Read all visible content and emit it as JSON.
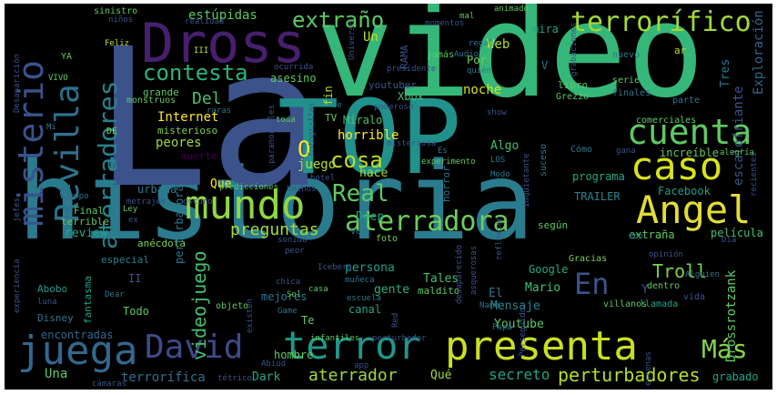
{
  "title": "Word cloud",
  "colors": {
    "background": "#000000",
    "frame": "#ffffff"
  },
  "words": [
    {
      "text": "historia",
      "color": "#2a7b8e"
    },
    {
      "text": "La",
      "color": "#3b528b"
    },
    {
      "text": "video",
      "color": "#35b779"
    },
    {
      "text": "TOP",
      "color": "#21918c"
    },
    {
      "text": "Dross",
      "color": "#481f70"
    },
    {
      "text": "caso",
      "color": "#d8e219"
    },
    {
      "text": "cuenta",
      "color": "#5ec962"
    },
    {
      "text": "mundo",
      "color": "#90d743"
    },
    {
      "text": "Angel",
      "color": "#e1dd37"
    },
    {
      "text": "presenta",
      "color": "#c8e020"
    },
    {
      "text": "juega",
      "color": "#31688e"
    },
    {
      "text": "David",
      "color": "#3e4a89"
    },
    {
      "text": "terror",
      "color": "#1f988b"
    },
    {
      "text": "Revilla",
      "color": "#2c728e"
    },
    {
      "text": "misterio",
      "color": "#3b528b"
    },
    {
      "text": "aterradores",
      "color": "#26828e"
    },
    {
      "text": "terrorífico",
      "color": "#a2da37"
    },
    {
      "text": "extraño",
      "color": "#5ec962"
    },
    {
      "text": "contesta",
      "color": "#2db27d"
    },
    {
      "text": "aterradora",
      "color": "#6ccd5a"
    },
    {
      "text": "Real",
      "color": "#5ec962"
    },
    {
      "text": "En",
      "color": "#3b528b"
    },
    {
      "text": "Más",
      "color": "#86d549"
    },
    {
      "text": "cosa",
      "color": "#bddf26"
    },
    {
      "text": "O",
      "color": "#fde725"
    },
    {
      "text": "preguntas",
      "color": "#a8db34"
    },
    {
      "text": "perturbadores",
      "color": "#b5de2b"
    },
    {
      "text": "aterrador",
      "color": "#9fda3a"
    },
    {
      "text": "secreto",
      "color": "#20a486"
    },
    {
      "text": "Troll",
      "color": "#7ad151"
    },
    {
      "text": "videojuego",
      "color": "#46c06f"
    },
    {
      "text": "estúpidas",
      "color": "#5ec962"
    },
    {
      "text": "Del",
      "color": "#4ac16d"
    },
    {
      "text": "Internet",
      "color": "#fde725"
    },
    {
      "text": "peores",
      "color": "#9fda3a"
    },
    {
      "text": "juego",
      "color": "#b5de2b"
    },
    {
      "text": "grande",
      "color": "#5ec962"
    },
    {
      "text": "misterioso",
      "color": "#7ad151"
    },
    {
      "text": "Web",
      "color": "#b5de2b"
    },
    {
      "text": "mira",
      "color": "#20a486"
    },
    {
      "text": "Un",
      "color": "#bddf26"
    },
    {
      "text": "Por",
      "color": "#75d054"
    },
    {
      "text": "noche",
      "color": "#d8e219"
    },
    {
      "text": "Xbox",
      "color": "#44bf70"
    },
    {
      "text": "horrible",
      "color": "#fde725"
    },
    {
      "text": "Míralo",
      "color": "#4ac16d"
    },
    {
      "text": "hace",
      "color": "#a2da37"
    },
    {
      "text": "Algo",
      "color": "#44bf70"
    },
    {
      "text": "Deep",
      "color": "#1fa188"
    },
    {
      "text": "persona",
      "color": "#1fa188"
    },
    {
      "text": "gente",
      "color": "#29af7f"
    },
    {
      "text": "Mensaje",
      "color": "#25848e"
    },
    {
      "text": "Youtube",
      "color": "#5ec962"
    },
    {
      "text": "Mario",
      "color": "#44bf70"
    },
    {
      "text": "Tales",
      "color": "#44bf70"
    },
    {
      "text": "Google",
      "color": "#22a884"
    },
    {
      "text": "Facebook",
      "color": "#1f9e89"
    },
    {
      "text": "Tres",
      "color": "#2a788e"
    },
    {
      "text": "escalofriante",
      "color": "#3b528b"
    },
    {
      "text": "Exploración",
      "color": "#31688e"
    },
    {
      "text": "review",
      "color": "#22a884"
    },
    {
      "text": "mejores",
      "color": "#2a788e"
    },
    {
      "text": "Todo",
      "color": "#5ec962"
    },
    {
      "text": "Una",
      "color": "#5ec962"
    },
    {
      "text": "terrorífica",
      "color": "#2c728e"
    },
    {
      "text": "encontradas",
      "color": "#31688e"
    },
    {
      "text": "Dark",
      "color": "#22a884"
    },
    {
      "text": "Qué",
      "color": "#a0da39"
    },
    {
      "text": "grabado",
      "color": "#20a486"
    },
    {
      "text": "Drossrotzank",
      "color": "#5ec962"
    },
    {
      "text": "TRAILER",
      "color": "#25848e"
    },
    {
      "text": "programa",
      "color": "#22a884"
    },
    {
      "text": "película",
      "color": "#44bf70"
    },
    {
      "text": "extraña",
      "color": "#5ec962"
    },
    {
      "text": "increíble",
      "color": "#5ec962"
    },
    {
      "text": "fin",
      "color": "#bddf26"
    },
    {
      "text": "asesino",
      "color": "#5ec962"
    },
    {
      "text": "youtuber",
      "color": "#3b528b"
    },
    {
      "text": "libro",
      "color": "#5ec962"
    },
    {
      "text": "canal",
      "color": "#22a884"
    },
    {
      "text": "hombre",
      "color": "#5ec962"
    },
    {
      "text": "especial",
      "color": "#26828e"
    },
    {
      "text": "anécdota",
      "color": "#7ad151"
    },
    {
      "text": "fantasma",
      "color": "#20a486"
    },
    {
      "text": "urbana",
      "color": "#2a788e"
    },
    {
      "text": "perturbadora",
      "color": "#2a788e"
    },
    {
      "text": "Que",
      "color": "#fde725"
    },
    {
      "text": "Final",
      "color": "#5ec962"
    },
    {
      "text": "terrible",
      "color": "#5ec962"
    },
    {
      "text": "II",
      "color": "#3b528b"
    },
    {
      "text": "Abobo",
      "color": "#1f988b"
    },
    {
      "text": "Disney",
      "color": "#2a788e"
    },
    {
      "text": "Te",
      "color": "#5ec962"
    },
    {
      "text": "El",
      "color": "#2a788e"
    },
    {
      "text": "Y",
      "color": "#3b528b"
    },
    {
      "text": "V",
      "color": "#2a788e"
    },
    {
      "text": "ar",
      "color": "#bddf26"
    },
    {
      "text": "TV",
      "color": "#5ec962"
    },
    {
      "text": "Cómo",
      "color": "#2a788e"
    },
    {
      "text": "según",
      "color": "#5ec962"
    },
    {
      "text": "horror",
      "color": "#2a788e"
    },
    {
      "text": "ver",
      "color": "#2a788e"
    },
    {
      "text": "foto",
      "color": "#7ad151"
    },
    {
      "text": "maldito",
      "color": "#5ec962"
    },
    {
      "text": "Gracias",
      "color": "#7ad151"
    },
    {
      "text": "dentro",
      "color": "#5ec962"
    },
    {
      "text": "llamada",
      "color": "#20a486"
    },
    {
      "text": "vida",
      "color": "#3b528b"
    },
    {
      "text": "muerte",
      "color": "#440154"
    },
    {
      "text": "Dreams",
      "color": "#2a788e"
    },
    {
      "text": "sinistro",
      "color": "#5ec962"
    },
    {
      "text": "Feliz",
      "color": "#bddf26"
    },
    {
      "text": "YA",
      "color": "#5ec962"
    },
    {
      "text": "VIVO",
      "color": "#5ec962"
    },
    {
      "text": "Mi",
      "color": "#2a788e"
    },
    {
      "text": "DE",
      "color": "#7ad151"
    },
    {
      "text": "monstruos",
      "color": "#5ec962"
    },
    {
      "text": "raras",
      "color": "#2a788e"
    },
    {
      "text": "ocurrida",
      "color": "#3b528b"
    },
    {
      "text": "presidente",
      "color": "#3b528b"
    },
    {
      "text": "jamás",
      "color": "#5ec962"
    },
    {
      "text": "Audio",
      "color": "#2a788e"
    },
    {
      "text": "quién",
      "color": "#2a788e"
    },
    {
      "text": "regalo",
      "color": "#2a788e"
    },
    {
      "text": "momentos",
      "color": "#3b528b"
    },
    {
      "text": "animado",
      "color": "#5ec962"
    },
    {
      "text": "nuevo",
      "color": "#2a788e"
    },
    {
      "text": "serie",
      "color": "#5ec962"
    },
    {
      "text": "grabaciones",
      "color": "#3b528b"
    },
    {
      "text": "finales",
      "color": "#2a788e"
    },
    {
      "text": "parte",
      "color": "#2a788e"
    },
    {
      "text": "comerciales",
      "color": "#5ec962"
    },
    {
      "text": "alegría",
      "color": "#5ec962"
    },
    {
      "text": "gana",
      "color": "#3b528b"
    },
    {
      "text": "recientes",
      "color": "#3b528b"
    },
    {
      "text": "Día",
      "color": "#3b528b"
    },
    {
      "text": "opinión",
      "color": "#3b528b"
    },
    {
      "text": "Alguien",
      "color": "#2a788e"
    },
    {
      "text": "Con",
      "color": "#2a788e"
    },
    {
      "text": "sonido",
      "color": "#3b528b"
    },
    {
      "text": "peor",
      "color": "#3b528b"
    },
    {
      "text": "Iceberg",
      "color": "#3b528b"
    },
    {
      "text": "chica",
      "color": "#3b528b"
    },
    {
      "text": "casa",
      "color": "#5ec962"
    },
    {
      "text": "Sol",
      "color": "#5ec962"
    },
    {
      "text": "muñeca",
      "color": "#2a788e"
    },
    {
      "text": "escuela",
      "color": "#2a788e"
    },
    {
      "text": "asquerosas",
      "color": "#3b528b"
    },
    {
      "text": "desaparecido",
      "color": "#3b528b"
    },
    {
      "text": "reflexión",
      "color": "#3b528b"
    },
    {
      "text": "Name",
      "color": "#2a788e"
    },
    {
      "text": "Papa",
      "color": "#2a788e"
    },
    {
      "text": "Red",
      "color": "#3b528b"
    },
    {
      "text": "perturbador",
      "color": "#3b528b"
    },
    {
      "text": "Perseguido",
      "color": "#3b528b"
    },
    {
      "text": "villanos",
      "color": "#5ec962"
    },
    {
      "text": "escenas",
      "color": "#3b528b"
    },
    {
      "text": "infantiles",
      "color": "#5ec962"
    },
    {
      "text": "Game",
      "color": "#2a788e"
    },
    {
      "text": "objeto",
      "color": "#5ec962"
    },
    {
      "text": "Abiud",
      "color": "#3b528b"
    },
    {
      "text": "tétrico",
      "color": "#3b528b"
    },
    {
      "text": "cámaras",
      "color": "#3b528b"
    },
    {
      "text": "app",
      "color": "#3b528b"
    },
    {
      "text": "existen",
      "color": "#3b528b"
    },
    {
      "text": "Dear",
      "color": "#2a788e"
    },
    {
      "text": "luna",
      "color": "#3b528b"
    },
    {
      "text": "experiencia",
      "color": "#3b528b"
    },
    {
      "text": "jefes",
      "color": "#3b528b"
    },
    {
      "text": "tiempo",
      "color": "#2a788e"
    },
    {
      "text": "Ley",
      "color": "#5ec962"
    },
    {
      "text": "ex",
      "color": "#3b528b"
    },
    {
      "text": "metrajes",
      "color": "#3b528b"
    },
    {
      "text": "oscuro",
      "color": "#3b528b"
    },
    {
      "text": "predicciones",
      "color": "#5ec962"
    },
    {
      "text": "hechos",
      "color": "#3b528b"
    },
    {
      "text": "hotel",
      "color": "#3b528b"
    },
    {
      "text": "misteriosa",
      "color": "#3b528b"
    },
    {
      "text": "experimento",
      "color": "#5ec962"
    },
    {
      "text": "Es",
      "color": "#2a788e"
    },
    {
      "text": "LOS",
      "color": "#2a788e"
    },
    {
      "text": "Modo",
      "color": "#2a788e"
    },
    {
      "text": "inquietante",
      "color": "#3b528b"
    },
    {
      "text": "suceso",
      "color": "#2a788e"
    },
    {
      "text": "Grezzo",
      "color": "#5ec962"
    },
    {
      "text": "toda",
      "color": "#5ec962"
    },
    {
      "text": "paranormales",
      "color": "#3b528b"
    },
    {
      "text": "fotografías",
      "color": "#3b528b"
    },
    {
      "text": "poderoso",
      "color": "#3b528b"
    },
    {
      "text": "Se",
      "color": "#2a788e"
    },
    {
      "text": "show",
      "color": "#3b528b"
    },
    {
      "text": "Universo",
      "color": "#3b528b"
    },
    {
      "text": "RAMA",
      "color": "#3b528b"
    },
    {
      "text": "mal",
      "color": "#5ec962"
    },
    {
      "text": "realidad",
      "color": "#3b528b"
    },
    {
      "text": "niños",
      "color": "#3b528b"
    },
    {
      "text": "III",
      "color": "#bddf26"
    },
    {
      "text": "Desaparición",
      "color": "#3b528b"
    }
  ]
}
